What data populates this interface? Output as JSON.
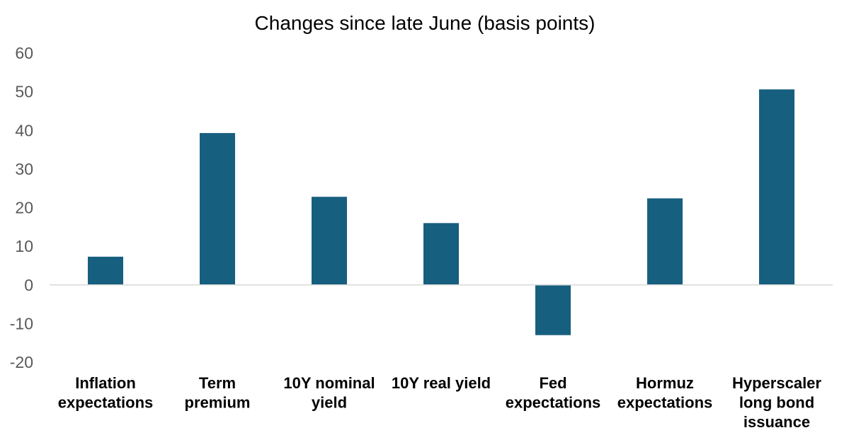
{
  "chart_data": {
    "type": "bar",
    "title": "Changes since late June (basis points)",
    "xlabel": "",
    "ylabel": "",
    "categories": [
      [
        "Inflation",
        "expectations"
      ],
      [
        "Term",
        "premium"
      ],
      [
        "10Y nominal",
        "yield"
      ],
      [
        "10Y real yield"
      ],
      [
        "Fed",
        "expectations"
      ],
      [
        "Hormuz",
        "expectations"
      ],
      [
        "Hyperscaler",
        "long bond",
        "issuance"
      ]
    ],
    "values": [
      7.3,
      39.3,
      22.8,
      16,
      -13,
      22.4,
      50.6
    ],
    "ylim": [
      -20,
      60
    ],
    "yticks": [
      "60",
      "50",
      "40",
      "30",
      "20",
      "10",
      "0",
      "-10",
      "-20"
    ],
    "grid": false,
    "legend": "none",
    "colors": {
      "bar": "#175F7F",
      "axis": "#D9D9D9",
      "tick_text": "#595959",
      "label_text": "#000000"
    }
  }
}
